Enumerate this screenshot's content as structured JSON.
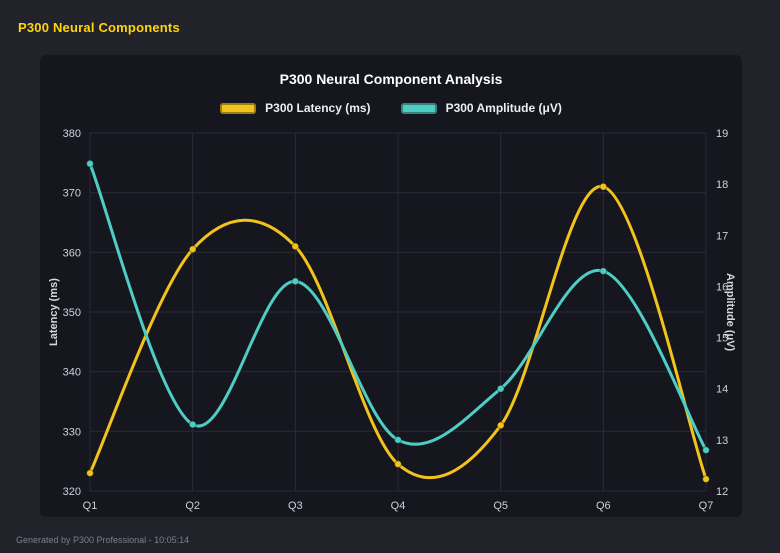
{
  "app": {
    "title": "P300 Neural Components",
    "footer": "Generated by P300 Professional - 10:05:14"
  },
  "chart_data": {
    "type": "line",
    "title": "P300 Neural Component Analysis",
    "categories": [
      "Q1",
      "Q2",
      "Q3",
      "Q4",
      "Q5",
      "Q6",
      "Q7"
    ],
    "series": [
      {
        "name": "P300 Latency (ms)",
        "axis": "left",
        "color": "#f2c31b",
        "values": [
          323,
          360.5,
          361,
          324.5,
          331,
          371,
          322
        ]
      },
      {
        "name": "P300 Amplitude (μV)",
        "axis": "right",
        "color": "#4ecdc4",
        "values": [
          18.4,
          13.3,
          16.1,
          13.0,
          14.0,
          16.3,
          12.8
        ]
      }
    ],
    "left_axis": {
      "label": "Latency (ms)",
      "min": 320,
      "max": 380,
      "step": 10
    },
    "right_axis": {
      "label": "Amplitude (μV)",
      "min": 12,
      "max": 19,
      "step": 1
    },
    "grid": true,
    "smooth": true,
    "legend_position": "top",
    "colors": {
      "background": "#22222a",
      "panel": "#16161f",
      "gridline": "#2b2b3a",
      "title_accent": "#ffd60a",
      "text": "#cfd0d8"
    }
  }
}
